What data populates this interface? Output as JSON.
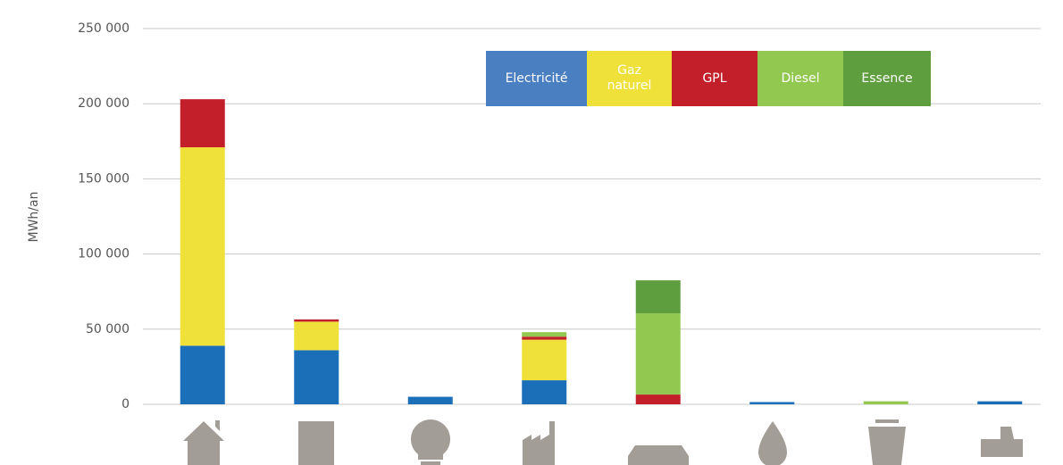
{
  "chart_data": {
    "type": "stacked_bar",
    "ylabel": "MWh/an",
    "categories": [
      null,
      null,
      null,
      null,
      null,
      null,
      null,
      null
    ],
    "series": [
      {
        "name": "Electricité",
        "color": "#1a6fb8",
        "values": [
          39000,
          36000,
          5000,
          16000,
          0,
          1500,
          0,
          2000
        ]
      },
      {
        "name": "Gaz naturel",
        "color": "#efe03a",
        "values": [
          132000,
          19000,
          0,
          27000,
          0,
          0,
          0,
          0
        ]
      },
      {
        "name": "GPL",
        "color": "#c21f2b",
        "values": [
          32000,
          1500,
          0,
          2000,
          6500,
          0,
          0,
          0
        ]
      },
      {
        "name": "Diesel",
        "color": "#92c850",
        "values": [
          0,
          0,
          0,
          3000,
          54000,
          0,
          2000,
          0
        ]
      },
      {
        "name": "Essence",
        "color": "#5f9e3e",
        "values": [
          0,
          0,
          0,
          0,
          22000,
          0,
          0,
          0
        ]
      }
    ],
    "ylim": [
      0,
      250000
    ],
    "yticks": [
      0,
      {
        "value": 50000,
        "label": "50 000"
      },
      {
        "value": 100000,
        "label": "100 000"
      },
      {
        "value": 150000,
        "label": "150 000"
      },
      {
        "value": 200000,
        "label": "200 000"
      },
      {
        "value": 250000,
        "label": "250 000"
      }
    ],
    "grid": true
  }
}
